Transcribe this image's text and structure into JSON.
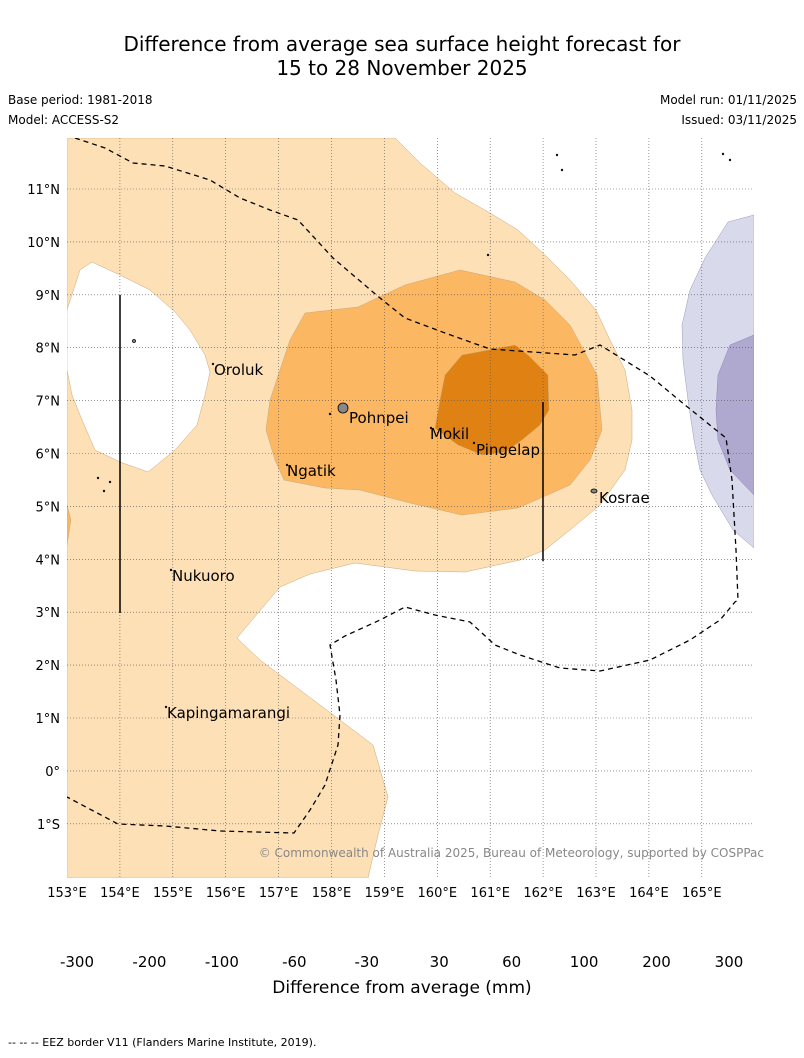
{
  "title": {
    "line1": "Difference from average sea surface height forecast for",
    "line2": "15 to 28 November 2025"
  },
  "meta": {
    "base_period": "Base period: 1981-2018",
    "model": "Model: ACCESS-S2",
    "model_run": "Model run: 01/11/2025",
    "issued": "Issued: 03/11/2025"
  },
  "map": {
    "lon_labels": [
      "153°E",
      "154°E",
      "155°E",
      "156°E",
      "157°E",
      "158°E",
      "159°E",
      "160°E",
      "161°E",
      "162°E",
      "163°E",
      "164°E",
      "165°E"
    ],
    "lat_labels": [
      "11°N",
      "10°N",
      "9°N",
      "8°N",
      "7°N",
      "6°N",
      "5°N",
      "4°N",
      "3°N",
      "2°N",
      "1°N",
      "0°",
      "1°S"
    ],
    "places": [
      "Oroluk",
      "Pohnpei",
      "Mokil",
      "Pingelap",
      "Ngatik",
      "Kosrae",
      "Nukuoro",
      "Kapingamarangi"
    ],
    "copyright": "© Commonwealth of Australia 2025, Bureau of Meteorology, supported by COSPPac"
  },
  "colorbar": {
    "title": "Difference from average (mm)",
    "ticks": [
      "-300",
      "-200",
      "-100",
      "-60",
      "-30",
      "30",
      "60",
      "100",
      "200",
      "300"
    ],
    "colors": [
      "#3a0b5b",
      "#542587",
      "#7d70ab",
      "#b0a9cf",
      "#d9d9ec",
      "#ffffff",
      "#fee0b6",
      "#fbb762",
      "#e08213",
      "#b35807",
      "#7f3b08"
    ]
  },
  "footer": {
    "eez_legend": "-- -- -- EEZ border V11 (Flanders Marine Institute, 2019)."
  }
}
